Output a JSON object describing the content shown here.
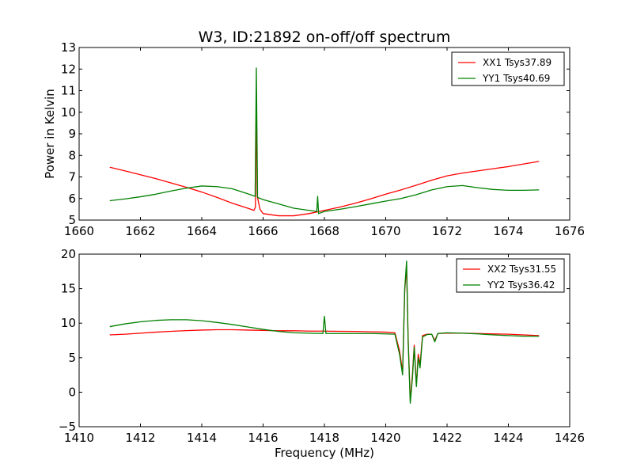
{
  "figure": {
    "title": "W3, ID:21892 on-off/off spectrum"
  },
  "chart_data": [
    {
      "type": "line",
      "ylabel": "Power in Kelvin",
      "xlabel": "",
      "xlim": [
        1660,
        1676
      ],
      "ylim": [
        5,
        13
      ],
      "xticks": [
        1660,
        1662,
        1664,
        1666,
        1668,
        1670,
        1672,
        1674,
        1676
      ],
      "yticks": [
        5,
        6,
        7,
        8,
        9,
        10,
        11,
        12,
        13
      ],
      "grid": false,
      "legend_position": "top-right",
      "series": [
        {
          "name": "XX1 Tsys37.89",
          "color": "#ff0000",
          "points": [
            [
              1661.0,
              7.45
            ],
            [
              1661.5,
              7.28
            ],
            [
              1662.0,
              7.1
            ],
            [
              1662.5,
              6.92
            ],
            [
              1663.0,
              6.72
            ],
            [
              1663.5,
              6.52
            ],
            [
              1664.0,
              6.3
            ],
            [
              1664.5,
              6.05
            ],
            [
              1665.0,
              5.78
            ],
            [
              1665.5,
              5.55
            ],
            [
              1665.7,
              5.45
            ],
            [
              1665.75,
              5.6
            ],
            [
              1665.78,
              10.9
            ],
            [
              1665.81,
              6.1
            ],
            [
              1665.9,
              5.5
            ],
            [
              1666.0,
              5.3
            ],
            [
              1666.5,
              5.2
            ],
            [
              1667.0,
              5.2
            ],
            [
              1667.5,
              5.3
            ],
            [
              1668.0,
              5.45
            ],
            [
              1668.5,
              5.6
            ],
            [
              1669.0,
              5.78
            ],
            [
              1669.5,
              5.98
            ],
            [
              1670.0,
              6.2
            ],
            [
              1670.5,
              6.4
            ],
            [
              1671.0,
              6.62
            ],
            [
              1671.5,
              6.85
            ],
            [
              1672.0,
              7.05
            ],
            [
              1672.5,
              7.18
            ],
            [
              1673.0,
              7.28
            ],
            [
              1673.5,
              7.38
            ],
            [
              1674.0,
              7.48
            ],
            [
              1674.5,
              7.6
            ],
            [
              1675.0,
              7.72
            ]
          ]
        },
        {
          "name": "YY1 Tsys40.69",
          "color": "#008000",
          "points": [
            [
              1661.0,
              5.9
            ],
            [
              1661.5,
              5.98
            ],
            [
              1662.0,
              6.08
            ],
            [
              1662.5,
              6.2
            ],
            [
              1663.0,
              6.35
            ],
            [
              1663.5,
              6.48
            ],
            [
              1664.0,
              6.58
            ],
            [
              1664.5,
              6.55
            ],
            [
              1665.0,
              6.45
            ],
            [
              1665.5,
              6.22
            ],
            [
              1665.74,
              6.1
            ],
            [
              1665.78,
              12.05
            ],
            [
              1665.82,
              6.05
            ],
            [
              1666.0,
              5.95
            ],
            [
              1666.5,
              5.75
            ],
            [
              1667.0,
              5.55
            ],
            [
              1667.5,
              5.45
            ],
            [
              1667.75,
              5.4
            ],
            [
              1667.78,
              6.1
            ],
            [
              1667.81,
              5.3
            ],
            [
              1668.0,
              5.4
            ],
            [
              1668.5,
              5.5
            ],
            [
              1669.0,
              5.62
            ],
            [
              1669.5,
              5.75
            ],
            [
              1670.0,
              5.88
            ],
            [
              1670.5,
              6.0
            ],
            [
              1671.0,
              6.18
            ],
            [
              1671.5,
              6.4
            ],
            [
              1672.0,
              6.55
            ],
            [
              1672.5,
              6.6
            ],
            [
              1673.0,
              6.5
            ],
            [
              1673.5,
              6.42
            ],
            [
              1674.0,
              6.38
            ],
            [
              1674.5,
              6.38
            ],
            [
              1675.0,
              6.4
            ]
          ]
        }
      ]
    },
    {
      "type": "line",
      "ylabel": "",
      "xlabel": "Frequency (MHz)",
      "xlim": [
        1410,
        1426
      ],
      "ylim": [
        -5,
        20
      ],
      "xticks": [
        1410,
        1412,
        1414,
        1416,
        1418,
        1420,
        1422,
        1424,
        1426
      ],
      "yticks": [
        -5,
        0,
        5,
        10,
        15,
        20
      ],
      "grid": false,
      "legend_position": "top-right",
      "series": [
        {
          "name": "XX2 Tsys31.55",
          "color": "#ff0000",
          "points": [
            [
              1411.0,
              8.3
            ],
            [
              1411.5,
              8.4
            ],
            [
              1412.0,
              8.55
            ],
            [
              1412.5,
              8.7
            ],
            [
              1413.0,
              8.82
            ],
            [
              1413.5,
              8.92
            ],
            [
              1414.0,
              9.0
            ],
            [
              1414.5,
              9.05
            ],
            [
              1415.0,
              9.05
            ],
            [
              1415.5,
              9.0
            ],
            [
              1416.0,
              8.95
            ],
            [
              1416.5,
              8.9
            ],
            [
              1417.0,
              8.9
            ],
            [
              1417.5,
              8.85
            ],
            [
              1418.0,
              8.85
            ],
            [
              1418.5,
              8.82
            ],
            [
              1419.0,
              8.8
            ],
            [
              1419.5,
              8.75
            ],
            [
              1420.0,
              8.7
            ],
            [
              1420.3,
              8.6
            ],
            [
              1420.45,
              6.0
            ],
            [
              1420.55,
              3.0
            ],
            [
              1420.62,
              14.8
            ],
            [
              1420.68,
              18.0
            ],
            [
              1420.73,
              8.0
            ],
            [
              1420.8,
              -1.2
            ],
            [
              1420.87,
              2.5
            ],
            [
              1420.93,
              6.8
            ],
            [
              1421.0,
              1.0
            ],
            [
              1421.06,
              5.5
            ],
            [
              1421.12,
              4.0
            ],
            [
              1421.2,
              8.2
            ],
            [
              1421.35,
              8.4
            ],
            [
              1421.5,
              8.4
            ],
            [
              1421.6,
              7.5
            ],
            [
              1421.7,
              8.5
            ],
            [
              1422.0,
              8.55
            ],
            [
              1422.5,
              8.55
            ],
            [
              1423.0,
              8.5
            ],
            [
              1423.5,
              8.45
            ],
            [
              1424.0,
              8.4
            ],
            [
              1424.5,
              8.3
            ],
            [
              1425.0,
              8.2
            ]
          ]
        },
        {
          "name": "YY2 Tsys36.42",
          "color": "#008000",
          "points": [
            [
              1411.0,
              9.5
            ],
            [
              1411.5,
              9.9
            ],
            [
              1412.0,
              10.2
            ],
            [
              1412.5,
              10.4
            ],
            [
              1413.0,
              10.5
            ],
            [
              1413.5,
              10.5
            ],
            [
              1414.0,
              10.35
            ],
            [
              1414.5,
              10.1
            ],
            [
              1415.0,
              9.8
            ],
            [
              1415.5,
              9.45
            ],
            [
              1416.0,
              9.1
            ],
            [
              1416.5,
              8.8
            ],
            [
              1417.0,
              8.6
            ],
            [
              1417.5,
              8.55
            ],
            [
              1417.95,
              8.5
            ],
            [
              1418.0,
              11.0
            ],
            [
              1418.05,
              8.5
            ],
            [
              1418.5,
              8.5
            ],
            [
              1419.0,
              8.5
            ],
            [
              1419.5,
              8.5
            ],
            [
              1420.0,
              8.45
            ],
            [
              1420.3,
              8.4
            ],
            [
              1420.45,
              5.5
            ],
            [
              1420.55,
              2.5
            ],
            [
              1420.62,
              15.0
            ],
            [
              1420.68,
              19.0
            ],
            [
              1420.73,
              7.5
            ],
            [
              1420.8,
              -1.6
            ],
            [
              1420.87,
              2.0
            ],
            [
              1420.93,
              6.5
            ],
            [
              1421.0,
              0.8
            ],
            [
              1421.06,
              5.0
            ],
            [
              1421.12,
              3.5
            ],
            [
              1421.2,
              8.0
            ],
            [
              1421.35,
              8.35
            ],
            [
              1421.5,
              8.4
            ],
            [
              1421.6,
              7.3
            ],
            [
              1421.7,
              8.5
            ],
            [
              1422.0,
              8.6
            ],
            [
              1422.5,
              8.55
            ],
            [
              1423.0,
              8.45
            ],
            [
              1423.5,
              8.3
            ],
            [
              1424.0,
              8.2
            ],
            [
              1424.5,
              8.1
            ],
            [
              1425.0,
              8.1
            ]
          ]
        }
      ]
    }
  ]
}
